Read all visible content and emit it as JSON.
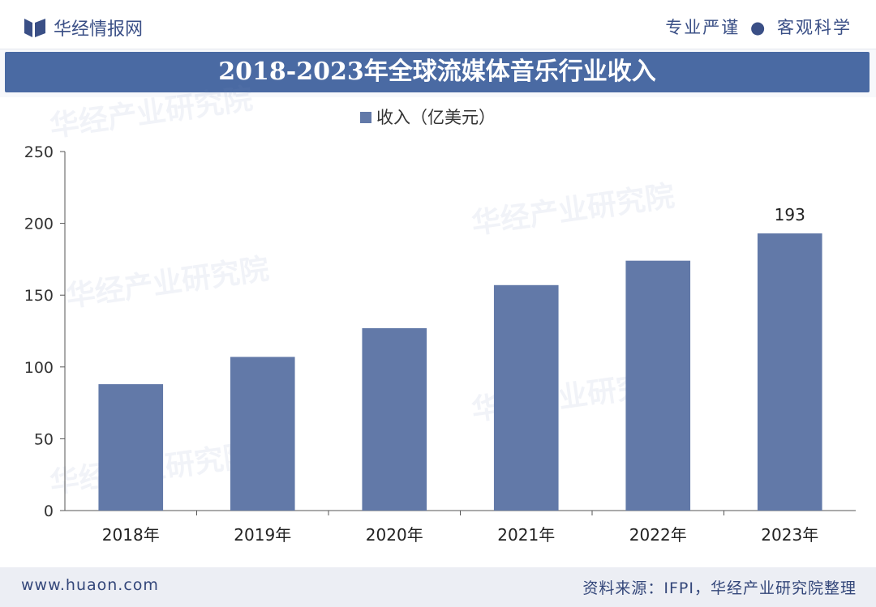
{
  "header": {
    "brand": "华经情报网",
    "slogan_left": "专业严谨",
    "slogan_dot": "●",
    "slogan_right": "客观科学"
  },
  "watermark": "华经产业研究院",
  "colors": {
    "bar": "#6279a8",
    "title_bg": "#4a6aa3",
    "brand": "#3a4f86"
  },
  "chart_data": {
    "type": "bar",
    "title": "2018-2023年全球流媒体音乐行业收入",
    "categories": [
      "2018年",
      "2019年",
      "2020年",
      "2021年",
      "2022年",
      "2023年"
    ],
    "series": [
      {
        "name": "收入（亿美元）",
        "values": [
          88,
          107,
          127,
          157,
          174,
          193
        ]
      }
    ],
    "data_labels": [
      {
        "category": "2023年",
        "text": "193"
      }
    ],
    "ylim": [
      0,
      250
    ],
    "yticks": [
      "0",
      "50",
      "100",
      "150",
      "200",
      "250"
    ],
    "ytick_values": [
      0,
      50,
      100,
      150,
      200,
      250
    ],
    "legend": "top-center",
    "grid": false
  },
  "footer": {
    "site": "www.huaon.com",
    "source": "资料来源：IFPI，华经产业研究院整理"
  }
}
